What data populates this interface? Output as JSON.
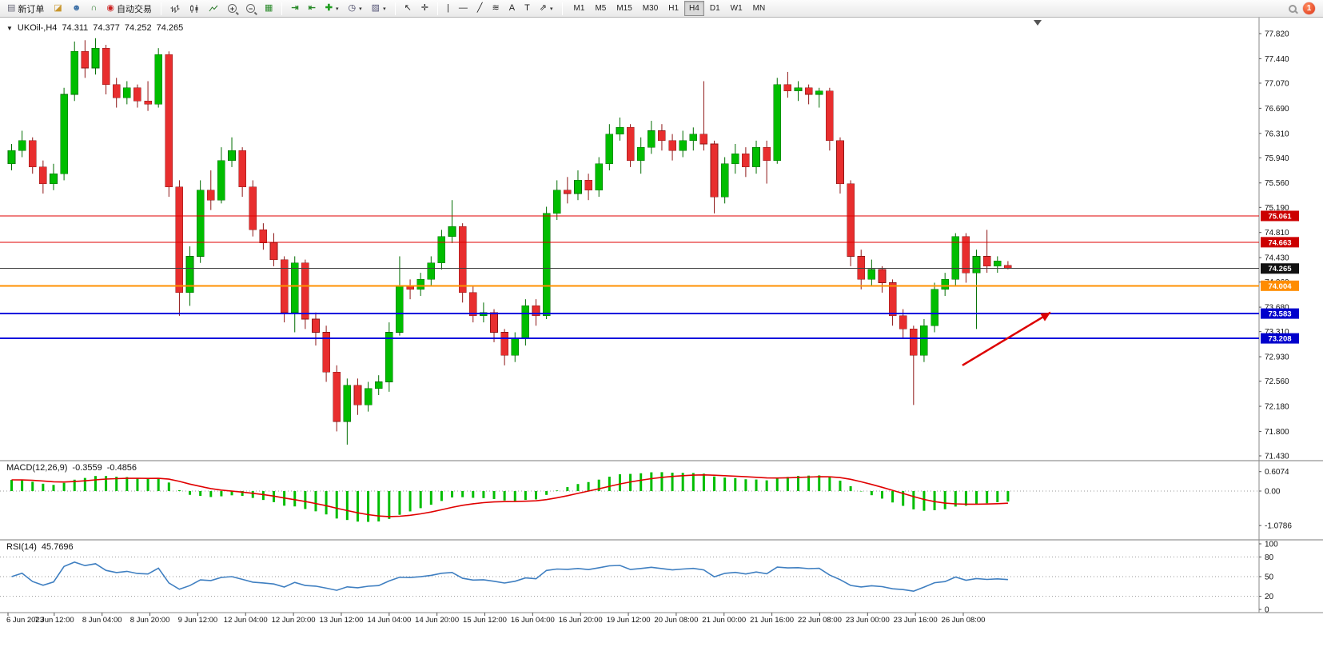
{
  "toolbar": {
    "new_order": "新订单",
    "auto_trading": "自动交易",
    "timeframes": [
      "M1",
      "M5",
      "M15",
      "M30",
      "H1",
      "H4",
      "D1",
      "W1",
      "MN"
    ],
    "active_timeframe": "H4",
    "notification_count": "1",
    "icons": {
      "collapse": "▼",
      "new_order": "▤",
      "new_chart": "◪",
      "profiles": "☻",
      "metaeditor": "∩",
      "auto_trading": "◉",
      "zoom_in": "+",
      "zoom_out": "−",
      "tile_windows": "▦",
      "auto_scroll": "⇥",
      "chart_shift": "⇤",
      "indicators_plus": "✚",
      "periods_clock": "◷",
      "templates": "▨",
      "caret": "▾",
      "cursor": "↖",
      "crosshair": "✛",
      "vertical_line": "|",
      "horizontal_line": "—",
      "trendline": "╱",
      "fibonacci": "≋",
      "text": "A",
      "text_label": "T",
      "arrows": "⇗"
    }
  },
  "chart": {
    "title": {
      "symbol_period": "UKOil-,H4",
      "open": "74.311",
      "high": "74.377",
      "low": "74.252",
      "close": "74.265"
    },
    "price_axis": [
      "77.820",
      "77.440",
      "77.070",
      "76.690",
      "76.310",
      "75.940",
      "75.560",
      "75.190",
      "74.810",
      "74.430",
      "74.060",
      "73.680",
      "73.310",
      "72.930",
      "72.560",
      "72.180",
      "71.800",
      "71.430"
    ],
    "price_axis_range": {
      "top": 77.82,
      "bottom": 71.43
    },
    "time_axis": [
      "6 Jun 2023",
      "7 Jun 12:00",
      "8 Jun 04:00",
      "8 Jun 20:00",
      "9 Jun 12:00",
      "12 Jun 04:00",
      "12 Jun 20:00",
      "13 Jun 12:00",
      "14 Jun 04:00",
      "14 Jun 20:00",
      "15 Jun 12:00",
      "16 Jun 04:00",
      "16 Jun 20:00",
      "19 Jun 12:00",
      "20 Jun 08:00",
      "21 Jun 00:00",
      "21 Jun 16:00",
      "22 Jun 08:00",
      "23 Jun 00:00",
      "23 Jun 16:00",
      "26 Jun 08:00"
    ],
    "levels": [
      {
        "price": 75.061,
        "label": "75.061",
        "color": "#e00000",
        "tag_bg": "#cc0000",
        "width": 1
      },
      {
        "price": 74.663,
        "label": "74.663",
        "color": "#e00000",
        "tag_bg": "#cc0000",
        "width": 1
      },
      {
        "price": 74.265,
        "label": "74.265",
        "color": "#404040",
        "tag_bg": "#111111",
        "width": 1
      },
      {
        "price": 74.004,
        "label": "74.004",
        "color": "#ff9000",
        "tag_bg": "#ff8c00",
        "width": 2
      },
      {
        "price": 73.583,
        "label": "73.583",
        "color": "#0000dd",
        "tag_bg": "#0000cc",
        "width": 2
      },
      {
        "price": 73.208,
        "label": "73.208",
        "color": "#0000dd",
        "tag_bg": "#0000cc",
        "width": 2
      }
    ],
    "annotation_arrow": {
      "from": {
        "bar": 91.0,
        "price": 72.8
      },
      "to": {
        "bar": 99.4,
        "price": 73.6
      },
      "color": "#dd0000"
    },
    "colors": {
      "up": "#00bd00",
      "up_border": "#006d00",
      "down": "#e82e2e",
      "down_border": "#8e1616",
      "background": "#ffffff",
      "axis_text": "#111111"
    }
  },
  "macd": {
    "label": "MACD(12,26,9)",
    "main_value": "-0.3559",
    "signal_value": "-0.4856",
    "params": {
      "fast": 12,
      "slow": 26,
      "signal": 9
    },
    "axis": [
      "0.6074",
      "0.00",
      "-1.0786"
    ],
    "histogram_color": "#00bd00",
    "signal_color": "#e00000"
  },
  "rsi": {
    "label": "RSI(14)",
    "value": "45.7696",
    "period": 14,
    "axis": [
      "100",
      "80",
      "50",
      "20",
      "0"
    ],
    "levels": [
      80,
      50,
      20
    ],
    "line_color": "#3f7fc1"
  },
  "chart_data": {
    "type": "candlestick",
    "symbol": "UKOil-",
    "timeframe": "H4",
    "ylim": [
      71.43,
      77.82
    ],
    "indicators": [
      {
        "name": "MACD",
        "params": [
          12,
          26,
          9
        ],
        "last_main": -0.3559,
        "last_signal": -0.4856
      },
      {
        "name": "RSI",
        "params": [
          14
        ],
        "last_value": 45.7696
      }
    ],
    "ohlc": [
      [
        75.85,
        76.15,
        75.75,
        76.05
      ],
      [
        76.05,
        76.35,
        75.95,
        76.2
      ],
      [
        76.2,
        76.25,
        75.7,
        75.8
      ],
      [
        75.8,
        75.9,
        75.4,
        75.55
      ],
      [
        75.55,
        75.85,
        75.45,
        75.7
      ],
      [
        75.7,
        77.0,
        75.6,
        76.9
      ],
      [
        76.9,
        77.7,
        76.8,
        77.55
      ],
      [
        77.55,
        77.72,
        77.15,
        77.3
      ],
      [
        77.3,
        77.75,
        77.2,
        77.6
      ],
      [
        77.6,
        77.65,
        76.9,
        77.05
      ],
      [
        77.05,
        77.15,
        76.7,
        76.85
      ],
      [
        76.85,
        77.1,
        76.75,
        77.0
      ],
      [
        77.0,
        77.05,
        76.7,
        76.8
      ],
      [
        76.8,
        77.1,
        76.65,
        76.75
      ],
      [
        76.75,
        77.6,
        76.7,
        77.5
      ],
      [
        77.5,
        77.55,
        75.35,
        75.5
      ],
      [
        75.5,
        75.6,
        73.55,
        73.9
      ],
      [
        73.9,
        74.6,
        73.7,
        74.45
      ],
      [
        74.45,
        75.6,
        74.35,
        75.45
      ],
      [
        75.45,
        75.75,
        75.15,
        75.3
      ],
      [
        75.3,
        76.1,
        75.25,
        75.9
      ],
      [
        75.9,
        76.25,
        75.8,
        76.05
      ],
      [
        76.05,
        76.1,
        75.35,
        75.5
      ],
      [
        75.5,
        75.6,
        74.75,
        74.85
      ],
      [
        74.85,
        74.95,
        74.55,
        74.65
      ],
      [
        74.65,
        74.8,
        74.3,
        74.4
      ],
      [
        74.4,
        74.45,
        73.45,
        73.6
      ],
      [
        73.6,
        74.45,
        73.3,
        74.35
      ],
      [
        74.35,
        74.4,
        73.35,
        73.5
      ],
      [
        73.5,
        73.6,
        73.1,
        73.3
      ],
      [
        73.3,
        73.4,
        72.55,
        72.7
      ],
      [
        72.7,
        72.8,
        71.8,
        71.95
      ],
      [
        71.95,
        72.6,
        71.6,
        72.5
      ],
      [
        72.5,
        72.6,
        72.05,
        72.2
      ],
      [
        72.2,
        72.55,
        72.1,
        72.45
      ],
      [
        72.45,
        72.65,
        72.35,
        72.55
      ],
      [
        72.55,
        73.45,
        72.4,
        73.3
      ],
      [
        73.3,
        74.45,
        73.25,
        74.0
      ],
      [
        74.0,
        74.1,
        73.8,
        73.95
      ],
      [
        73.95,
        74.2,
        73.85,
        74.1
      ],
      [
        74.1,
        74.45,
        74.0,
        74.35
      ],
      [
        74.35,
        74.85,
        74.25,
        74.75
      ],
      [
        74.75,
        75.3,
        74.65,
        74.9
      ],
      [
        74.9,
        74.95,
        73.75,
        73.9
      ],
      [
        73.9,
        74.0,
        73.45,
        73.55
      ],
      [
        73.55,
        73.75,
        73.45,
        73.6
      ],
      [
        73.6,
        73.65,
        73.15,
        73.3
      ],
      [
        73.3,
        73.35,
        72.8,
        72.95
      ],
      [
        72.95,
        73.3,
        72.85,
        73.2
      ],
      [
        73.2,
        73.8,
        73.1,
        73.7
      ],
      [
        73.7,
        73.8,
        73.4,
        73.55
      ],
      [
        73.55,
        75.2,
        73.5,
        75.1
      ],
      [
        75.1,
        75.6,
        75.0,
        75.45
      ],
      [
        75.45,
        75.65,
        75.25,
        75.4
      ],
      [
        75.4,
        75.75,
        75.3,
        75.6
      ],
      [
        75.6,
        75.7,
        75.3,
        75.45
      ],
      [
        75.45,
        75.95,
        75.35,
        75.85
      ],
      [
        75.85,
        76.45,
        75.75,
        76.3
      ],
      [
        76.3,
        76.55,
        76.2,
        76.4
      ],
      [
        76.4,
        76.45,
        75.8,
        75.9
      ],
      [
        75.9,
        76.25,
        75.7,
        76.1
      ],
      [
        76.1,
        76.5,
        76.0,
        76.35
      ],
      [
        76.35,
        76.45,
        76.05,
        76.2
      ],
      [
        76.2,
        76.3,
        75.9,
        76.05
      ],
      [
        76.05,
        76.35,
        75.95,
        76.2
      ],
      [
        76.2,
        76.4,
        76.05,
        76.3
      ],
      [
        76.3,
        77.1,
        76.05,
        76.15
      ],
      [
        76.15,
        76.2,
        75.1,
        75.35
      ],
      [
        75.35,
        75.95,
        75.25,
        75.85
      ],
      [
        75.85,
        76.15,
        75.7,
        76.0
      ],
      [
        76.0,
        76.1,
        75.65,
        75.8
      ],
      [
        75.8,
        76.2,
        75.7,
        76.1
      ],
      [
        76.1,
        76.2,
        75.55,
        75.9
      ],
      [
        75.9,
        77.15,
        75.85,
        77.05
      ],
      [
        77.05,
        77.24,
        76.85,
        76.95
      ],
      [
        76.95,
        77.1,
        76.8,
        77.0
      ],
      [
        77.0,
        77.05,
        76.75,
        76.9
      ],
      [
        76.9,
        77.0,
        76.7,
        76.95
      ],
      [
        76.95,
        77.0,
        76.05,
        76.2
      ],
      [
        76.2,
        76.25,
        75.4,
        75.55
      ],
      [
        75.55,
        75.6,
        74.3,
        74.45
      ],
      [
        74.45,
        74.55,
        73.95,
        74.1
      ],
      [
        74.1,
        74.4,
        74.0,
        74.25
      ],
      [
        74.25,
        74.3,
        73.9,
        74.05
      ],
      [
        74.05,
        74.1,
        73.4,
        73.55
      ],
      [
        73.55,
        73.65,
        73.2,
        73.35
      ],
      [
        73.35,
        73.4,
        72.2,
        72.95
      ],
      [
        72.95,
        73.5,
        72.85,
        73.4
      ],
      [
        73.4,
        74.05,
        73.3,
        73.95
      ],
      [
        73.95,
        74.2,
        73.85,
        74.1
      ],
      [
        74.1,
        74.8,
        74.0,
        74.75
      ],
      [
        74.75,
        74.8,
        74.05,
        74.2
      ],
      [
        74.2,
        74.55,
        73.35,
        74.45
      ],
      [
        74.45,
        74.85,
        74.2,
        74.3
      ],
      [
        74.3,
        74.45,
        74.2,
        74.38
      ],
      [
        74.311,
        74.377,
        74.252,
        74.265
      ]
    ]
  }
}
